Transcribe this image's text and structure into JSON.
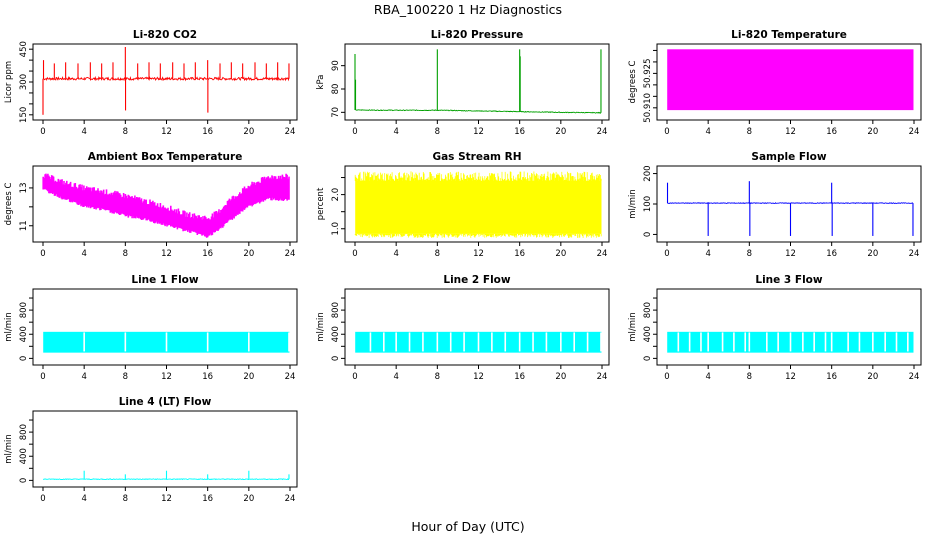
{
  "main_title": "RBA_100220  1 Hz Diagnostics",
  "x_axis_label": "Hour of Day (UTC)",
  "chart_data": [
    {
      "id": "co2",
      "type": "line",
      "title": "Li-820 CO2",
      "ylabel": "Licor ppm",
      "color": "#ff0000",
      "xlim": [
        0,
        24
      ],
      "ylim": [
        140,
        460
      ],
      "x_ticks": [
        0,
        4,
        8,
        12,
        16,
        20,
        24
      ],
      "y_ticks": [
        150,
        200,
        250,
        300,
        350,
        400,
        450
      ],
      "y_tick_labels": [
        "150",
        "",
        "",
        "300",
        "",
        "",
        "450"
      ],
      "baseline": 315,
      "noise": 12,
      "spikes": [
        {
          "x": 0.0,
          "value": 150
        },
        {
          "x": 0.05,
          "value": 400
        },
        {
          "x": 1.1,
          "value": 385
        },
        {
          "x": 2.2,
          "value": 390
        },
        {
          "x": 3.4,
          "value": 385
        },
        {
          "x": 4.6,
          "value": 390
        },
        {
          "x": 5.7,
          "value": 385
        },
        {
          "x": 6.8,
          "value": 390
        },
        {
          "x": 8.0,
          "value": 460
        },
        {
          "x": 8.02,
          "value": 170
        },
        {
          "x": 9.2,
          "value": 385
        },
        {
          "x": 10.3,
          "value": 390
        },
        {
          "x": 11.4,
          "value": 385
        },
        {
          "x": 12.6,
          "value": 390
        },
        {
          "x": 13.7,
          "value": 385
        },
        {
          "x": 14.8,
          "value": 390
        },
        {
          "x": 16.0,
          "value": 400
        },
        {
          "x": 16.02,
          "value": 160
        },
        {
          "x": 17.2,
          "value": 385
        },
        {
          "x": 18.3,
          "value": 390
        },
        {
          "x": 19.4,
          "value": 385
        },
        {
          "x": 20.6,
          "value": 390
        },
        {
          "x": 21.7,
          "value": 385
        },
        {
          "x": 22.8,
          "value": 390
        },
        {
          "x": 23.9,
          "value": 385
        }
      ]
    },
    {
      "id": "pressure",
      "type": "line",
      "title": "Li-820 Pressure",
      "ylabel": "kPa",
      "color": "#00a000",
      "xlim": [
        0,
        24
      ],
      "ylim": [
        68,
        98
      ],
      "x_ticks": [
        0,
        4,
        8,
        12,
        16,
        20,
        24
      ],
      "y_ticks": [
        70,
        80,
        90
      ],
      "y_tick_labels": [
        "70",
        "80",
        "90"
      ],
      "baseline_points": [
        [
          0,
          71
        ],
        [
          4,
          70.9
        ],
        [
          8,
          70.9
        ],
        [
          12,
          70.6
        ],
        [
          16,
          70.3
        ],
        [
          20,
          70
        ],
        [
          24,
          69.8
        ]
      ],
      "spikes": [
        {
          "x": 0.0,
          "value": 95
        },
        {
          "x": 0.05,
          "value": 84
        },
        {
          "x": 8.0,
          "value": 97
        },
        {
          "x": 16.0,
          "value": 97
        },
        {
          "x": 16.05,
          "value": 94
        },
        {
          "x": 23.9,
          "value": 97
        }
      ]
    },
    {
      "id": "li820temp",
      "type": "area",
      "title": "Li-820 Temperature",
      "ylabel": "degrees C",
      "color": "#ff00ff",
      "xlim": [
        0,
        24
      ],
      "ylim": [
        50.906,
        50.9365
      ],
      "x_ticks": [
        0,
        4,
        8,
        12,
        16,
        20,
        24
      ],
      "y_ticks": [
        50.91,
        50.915,
        50.92,
        50.925,
        50.93,
        50.935
      ],
      "y_tick_labels": [
        "50.910",
        "",
        "",
        "50.925",
        "",
        ""
      ],
      "band": [
        50.909,
        50.9355
      ]
    },
    {
      "id": "boxtemp",
      "type": "area",
      "title": "Ambient Box Temperature",
      "ylabel": "degrees C",
      "color": "#ff00ff",
      "xlim": [
        0,
        24
      ],
      "ylim": [
        10.3,
        14.0
      ],
      "x_ticks": [
        0,
        4,
        8,
        12,
        16,
        20,
        24
      ],
      "y_ticks": [
        11,
        12,
        13
      ],
      "y_tick_labels": [
        "11",
        "",
        "13"
      ],
      "upper": [
        [
          0,
          13.7
        ],
        [
          2,
          13.3
        ],
        [
          4,
          13.0
        ],
        [
          6,
          12.8
        ],
        [
          8,
          12.6
        ],
        [
          10,
          12.3
        ],
        [
          12,
          12.0
        ],
        [
          14,
          11.6
        ],
        [
          16,
          11.4
        ],
        [
          17,
          11.7
        ],
        [
          18,
          12.3
        ],
        [
          20,
          13.1
        ],
        [
          22,
          13.6
        ],
        [
          23.9,
          13.6
        ]
      ],
      "lower": [
        [
          0,
          13.0
        ],
        [
          2,
          12.5
        ],
        [
          4,
          12.1
        ],
        [
          6,
          11.9
        ],
        [
          8,
          11.6
        ],
        [
          10,
          11.4
        ],
        [
          12,
          11.1
        ],
        [
          14,
          10.8
        ],
        [
          16,
          10.5
        ],
        [
          17,
          10.8
        ],
        [
          18,
          11.3
        ],
        [
          20,
          12.1
        ],
        [
          22,
          12.5
        ],
        [
          23.9,
          12.4
        ]
      ]
    },
    {
      "id": "rh",
      "type": "area",
      "title": "Gas Stream RH",
      "ylabel": "percent",
      "color": "#ffff00",
      "xlim": [
        0,
        24
      ],
      "ylim": [
        0.7,
        2.75
      ],
      "x_ticks": [
        0,
        4,
        8,
        12,
        16,
        20,
        24
      ],
      "y_ticks": [
        1.0,
        1.5,
        2.0,
        2.5
      ],
      "y_tick_labels": [
        "1.0",
        "",
        "2.0",
        ""
      ],
      "band": [
        0.85,
        2.4
      ]
    },
    {
      "id": "sampleflow",
      "type": "line",
      "title": "Sample Flow",
      "ylabel": "ml/min",
      "color": "#0000ff",
      "xlim": [
        0,
        24
      ],
      "ylim": [
        -15,
        215
      ],
      "x_ticks": [
        0,
        4,
        8,
        12,
        16,
        20,
        24
      ],
      "y_ticks": [
        0,
        100,
        200
      ],
      "y_tick_labels": [
        "0",
        "100",
        "200"
      ],
      "baseline": 103,
      "spikes": [
        {
          "x": 0.05,
          "value": 170
        },
        {
          "x": 4.0,
          "value": -5
        },
        {
          "x": 8.0,
          "value": 175
        },
        {
          "x": 8.05,
          "value": -5
        },
        {
          "x": 12.0,
          "value": -5
        },
        {
          "x": 16.0,
          "value": 170
        },
        {
          "x": 16.05,
          "value": -5
        },
        {
          "x": 20.0,
          "value": -5
        },
        {
          "x": 23.9,
          "value": -5
        }
      ]
    },
    {
      "id": "line1",
      "type": "area",
      "title": "Line 1 Flow",
      "ylabel": "ml/min",
      "color": "#00ffff",
      "xlim": [
        0,
        24
      ],
      "ylim": [
        -60,
        1100
      ],
      "x_ticks": [
        0,
        4,
        8,
        12,
        16,
        20,
        24
      ],
      "y_ticks": [
        0,
        200,
        400,
        600,
        800,
        1000
      ],
      "y_tick_labels": [
        "0",
        "",
        "400",
        "",
        "800",
        ""
      ],
      "band": [
        95,
        440
      ],
      "gaps": [
        4.0,
        8.0,
        12.0,
        16.0,
        20.0,
        23.9
      ]
    },
    {
      "id": "line2",
      "type": "area",
      "title": "Line 2 Flow",
      "ylabel": "ml/min",
      "color": "#00ffff",
      "xlim": [
        0,
        24
      ],
      "ylim": [
        -60,
        1100
      ],
      "x_ticks": [
        0,
        4,
        8,
        12,
        16,
        20,
        24
      ],
      "y_ticks": [
        0,
        200,
        400,
        600,
        800,
        1000
      ],
      "y_tick_labels": [
        "0",
        "",
        "400",
        "",
        "800",
        ""
      ],
      "band": [
        95,
        440
      ],
      "gaps": [
        1.5,
        2.8,
        4.0,
        5.3,
        6.6,
        8.0,
        9.3,
        10.6,
        12.0,
        13.3,
        14.6,
        16.0,
        17.3,
        18.6,
        20.0,
        21.3,
        22.6,
        23.9
      ]
    },
    {
      "id": "line3",
      "type": "area",
      "title": "Line 3 Flow",
      "ylabel": "ml/min",
      "color": "#00ffff",
      "xlim": [
        0,
        24
      ],
      "ylim": [
        -60,
        1100
      ],
      "x_ticks": [
        0,
        4,
        8,
        12,
        16,
        20,
        24
      ],
      "y_ticks": [
        0,
        200,
        400,
        600,
        800,
        1000
      ],
      "y_tick_labels": [
        "0",
        "",
        "400",
        "",
        "800",
        ""
      ],
      "band": [
        95,
        440
      ],
      "gaps": [
        1.1,
        2.2,
        3.3,
        4.0,
        5.4,
        6.5,
        7.6,
        8.0,
        9.7,
        10.8,
        12.0,
        13.2,
        14.3,
        15.4,
        16.0,
        17.6,
        18.7,
        20.0,
        21.2,
        22.3,
        23.4
      ]
    },
    {
      "id": "line4",
      "type": "line",
      "title": "Line 4 (LT) Flow",
      "ylabel": "ml/min",
      "color": "#00ffff",
      "xlim": [
        0,
        24
      ],
      "ylim": [
        -60,
        1100
      ],
      "x_ticks": [
        0,
        4,
        8,
        12,
        16,
        20,
        24
      ],
      "y_ticks": [
        0,
        200,
        400,
        600,
        800,
        1000
      ],
      "y_tick_labels": [
        "0",
        "",
        "400",
        "",
        "800",
        ""
      ],
      "baseline": 20,
      "spikes": [
        {
          "x": 4.0,
          "value": 160
        },
        {
          "x": 8.0,
          "value": 100
        },
        {
          "x": 12.0,
          "value": 160
        },
        {
          "x": 16.0,
          "value": 100
        },
        {
          "x": 20.0,
          "value": 160
        },
        {
          "x": 23.9,
          "value": 100
        }
      ]
    }
  ]
}
